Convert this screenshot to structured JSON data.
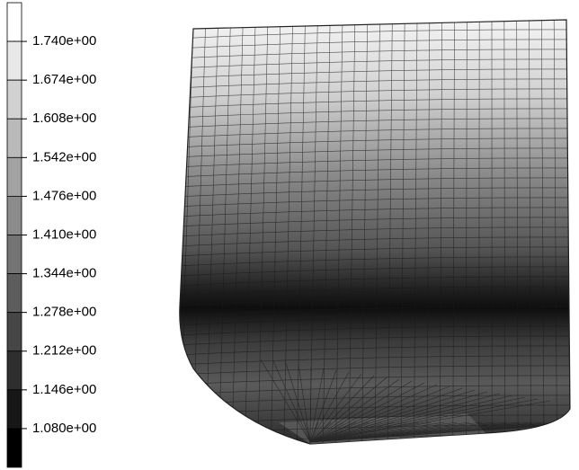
{
  "legend": {
    "labels": [
      "1.740e+00",
      "1.674e+00",
      "1.608e+00",
      "1.542e+00",
      "1.476e+00",
      "1.410e+00",
      "1.344e+00",
      "1.278e+00",
      "1.212e+00",
      "1.146e+00",
      "1.080e+00"
    ]
  }
}
